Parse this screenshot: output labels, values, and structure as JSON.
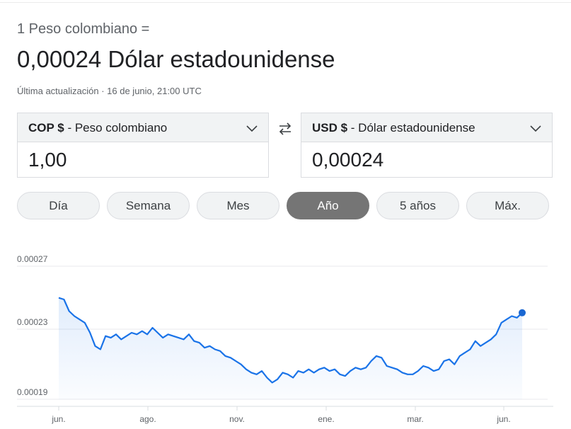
{
  "header": {
    "subtitle": "1 Peso colombiano =",
    "result": "0,00024 Dólar estadounidense",
    "updated": "Última actualización · 16 de junio, 21:00 UTC"
  },
  "converter": {
    "from": {
      "code": "COP $",
      "name": " - Peso colombiano",
      "value": "1,00"
    },
    "to": {
      "code": "USD $",
      "name": " - Dólar estadounidense",
      "value": "0,00024"
    }
  },
  "range_tabs": [
    {
      "label": "Día"
    },
    {
      "label": "Semana"
    },
    {
      "label": "Mes"
    },
    {
      "label": "Año",
      "active": true
    },
    {
      "label": "5 años"
    },
    {
      "label": "Máx."
    }
  ],
  "colors": {
    "line": "#1a73e8",
    "line_dark": "#1967d2",
    "active_tab": "#757575"
  },
  "chart_data": {
    "type": "line",
    "y_ticks": [
      "0.00027",
      "0.00023",
      "0.00019"
    ],
    "ylim": [
      0.00019,
      0.00027
    ],
    "x_ticks": [
      "jun.",
      "ago.",
      "nov.",
      "ene.",
      "mar.",
      "jun."
    ],
    "grid": true,
    "series": [
      {
        "values": [
          0.000251,
          0.00025,
          0.000243,
          0.00024,
          0.000238,
          0.000236,
          0.00023,
          0.000222,
          0.00022,
          0.000228,
          0.000227,
          0.000229,
          0.000226,
          0.000228,
          0.00023,
          0.000229,
          0.000231,
          0.000229,
          0.000233,
          0.00023,
          0.000227,
          0.000229,
          0.000228,
          0.000227,
          0.000226,
          0.000229,
          0.000225,
          0.000224,
          0.000221,
          0.000222,
          0.00022,
          0.000219,
          0.000216,
          0.000215,
          0.000213,
          0.000211,
          0.000208,
          0.000206,
          0.000205,
          0.000207,
          0.000203,
          0.0002,
          0.000202,
          0.000206,
          0.000205,
          0.000203,
          0.000207,
          0.000206,
          0.000208,
          0.000206,
          0.000208,
          0.000209,
          0.000207,
          0.000208,
          0.000205,
          0.000204,
          0.000207,
          0.000209,
          0.000208,
          0.000209,
          0.000213,
          0.000216,
          0.000215,
          0.00021,
          0.000209,
          0.000208,
          0.000206,
          0.000205,
          0.000205,
          0.000207,
          0.00021,
          0.000209,
          0.000207,
          0.000208,
          0.000213,
          0.000214,
          0.000211,
          0.000216,
          0.000218,
          0.00022,
          0.000225,
          0.000222,
          0.000224,
          0.000226,
          0.000229,
          0.000236,
          0.000238,
          0.00024,
          0.000239,
          0.000242
        ]
      }
    ]
  }
}
